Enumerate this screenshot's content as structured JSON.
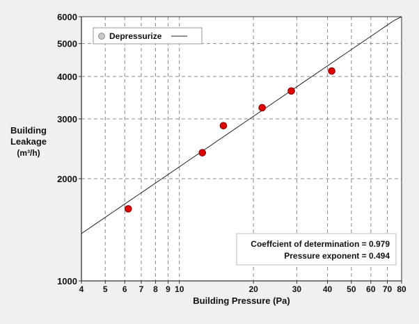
{
  "chart_data": {
    "type": "scatter",
    "xscale": "log",
    "yscale": "log",
    "xlabel": "Building Pressure (Pa)",
    "ylabel": [
      "Building",
      "Leakage",
      "(m³/h)"
    ],
    "xlim": [
      4,
      80
    ],
    "ylim": [
      1000,
      6000
    ],
    "xticks": [
      4,
      5,
      6,
      7,
      8,
      9,
      10,
      20,
      30,
      40,
      50,
      60,
      70,
      80
    ],
    "yticks": [
      1000,
      2000,
      3000,
      4000,
      5000,
      6000
    ],
    "grid": true,
    "legend": {
      "position": "top-left",
      "label": "Depressurize"
    },
    "series": [
      {
        "name": "Depressurize",
        "x": [
          6.2,
          12.4,
          15.1,
          21.7,
          28.5,
          41.6
        ],
        "y": [
          1630,
          2385,
          2865,
          3236,
          3625,
          4150
        ],
        "color": "#e00000"
      }
    ],
    "fit": {
      "coefficient": 695,
      "exponent": 0.494,
      "color": "#222222"
    },
    "annotations": [
      "Coeffcient of determination = 0.979",
      "Pressure exponent = 0.494"
    ]
  }
}
